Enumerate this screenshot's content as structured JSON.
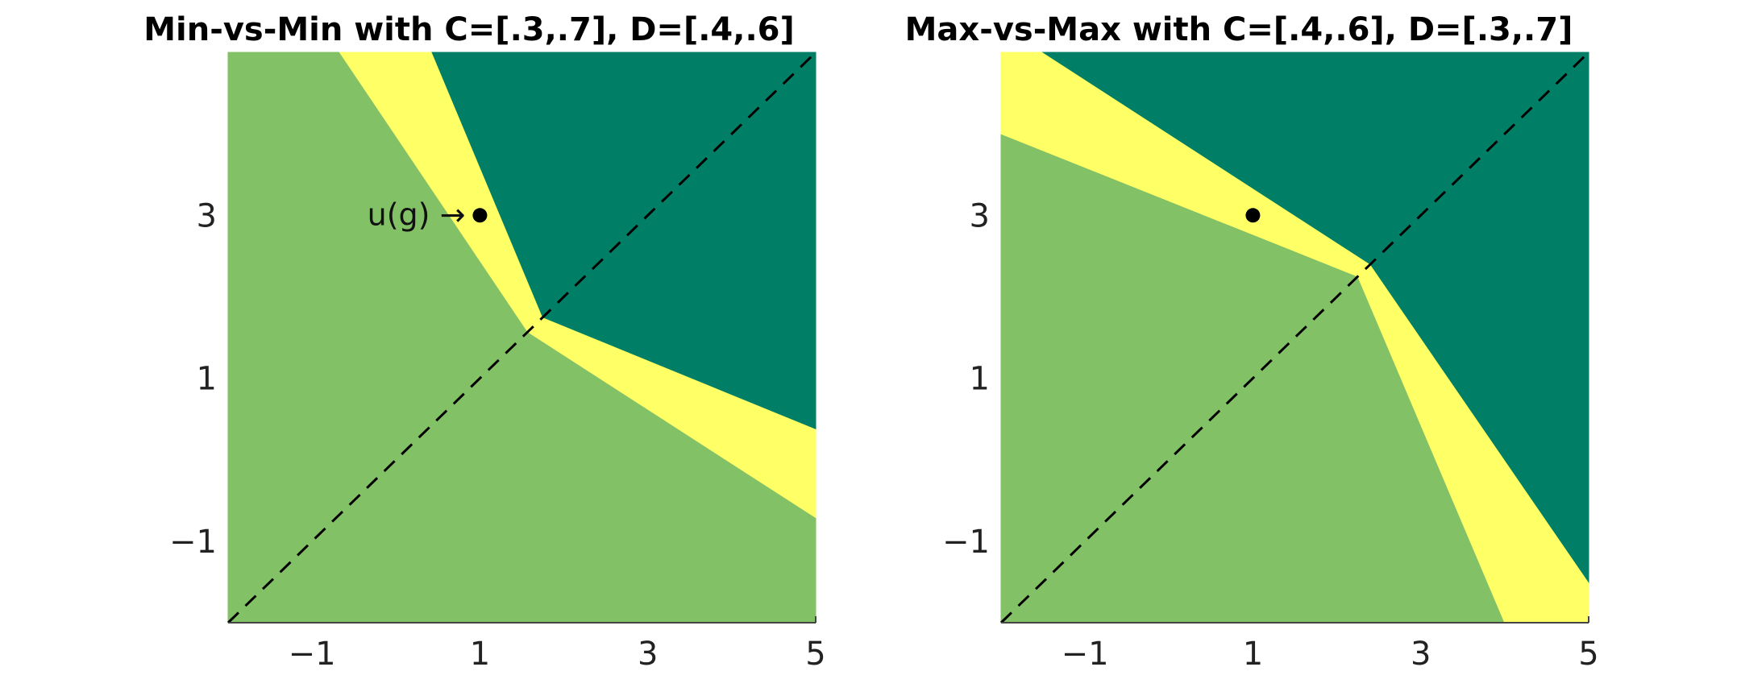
{
  "colors": {
    "dark_region": "#007f66",
    "light_region": "#83c166",
    "band_region": "#ffff66",
    "diagonal": "#000000",
    "point": "#000000"
  },
  "chart_data": [
    {
      "type": "area",
      "title": "Min-vs-Min with C=[.3,.7], D=[.4,.6]",
      "xlim": [
        -2,
        5
      ],
      "ylim": [
        -2,
        5
      ],
      "xticks": [
        -1,
        1,
        3,
        5
      ],
      "yticks": [
        -1,
        1,
        3
      ],
      "xtick_labels": [
        "−1",
        "1",
        "3",
        "5"
      ],
      "ytick_labels": [
        "−1",
        "1",
        "3"
      ],
      "grid": false,
      "regions": [
        {
          "color": "light",
          "polygon": [
            [
              -2,
              -2
            ],
            [
              -2,
              5
            ],
            [
              -0.67,
              5
            ],
            [
              1.57,
              1.57
            ],
            [
              5,
              -0.71
            ],
            [
              5,
              -2
            ]
          ]
        },
        {
          "color": "band",
          "polygon": [
            [
              -0.67,
              5
            ],
            [
              0.43,
              5
            ],
            [
              1.75,
              1.75
            ],
            [
              5,
              0.38
            ],
            [
              5,
              -0.71
            ],
            [
              1.57,
              1.57
            ]
          ]
        },
        {
          "color": "dark",
          "polygon": [
            [
              0.43,
              5
            ],
            [
              5,
              5
            ],
            [
              5,
              0.38
            ],
            [
              1.75,
              1.75
            ]
          ]
        }
      ],
      "diagonal": {
        "from": [
          -2,
          -2
        ],
        "to": [
          5,
          5
        ],
        "style": "dashed"
      },
      "point": {
        "x": 1,
        "y": 3,
        "label": "u(g) →"
      }
    },
    {
      "type": "area",
      "title": "Max-vs-Max with C=[.4,.6], D=[.3,.7]",
      "xlim": [
        -2,
        5
      ],
      "ylim": [
        -2,
        5
      ],
      "xticks": [
        -1,
        1,
        3,
        5
      ],
      "yticks": [
        -1,
        1,
        3
      ],
      "xtick_labels": [
        "−1",
        "1",
        "3",
        "5"
      ],
      "ytick_labels": [
        "−1",
        "1",
        "3"
      ],
      "grid": false,
      "regions": [
        {
          "color": "light",
          "polygon": [
            [
              -2,
              -2
            ],
            [
              -2,
              4
            ],
            [
              2.25,
              2.25
            ],
            [
              4.0,
              -2
            ]
          ]
        },
        {
          "color": "band",
          "polygon": [
            [
              -2,
              5
            ],
            [
              -1.5,
              5
            ],
            [
              2.4,
              2.4
            ],
            [
              5,
              -1.5
            ],
            [
              5,
              -2
            ],
            [
              4.0,
              -2
            ],
            [
              2.25,
              2.25
            ],
            [
              -2,
              4
            ]
          ]
        },
        {
          "color": "dark",
          "polygon": [
            [
              -1.5,
              5
            ],
            [
              5,
              5
            ],
            [
              5,
              -1.5
            ],
            [
              2.4,
              2.4
            ]
          ]
        }
      ],
      "diagonal": {
        "from": [
          -2,
          -2
        ],
        "to": [
          5,
          5
        ],
        "style": "dashed"
      },
      "point": {
        "x": 1,
        "y": 3,
        "label": ""
      }
    }
  ]
}
